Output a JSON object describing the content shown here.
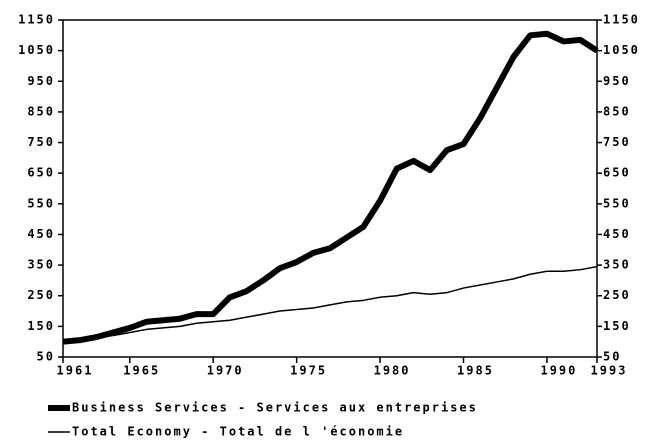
{
  "chart_data": {
    "type": "line",
    "x": [
      1961,
      1962,
      1963,
      1964,
      1965,
      1966,
      1967,
      1968,
      1969,
      1970,
      1971,
      1972,
      1973,
      1974,
      1975,
      1976,
      1977,
      1978,
      1979,
      1980,
      1981,
      1982,
      1983,
      1984,
      1985,
      1986,
      1987,
      1988,
      1989,
      1990,
      1991,
      1992,
      1993
    ],
    "series": [
      {
        "name": "Business Services - Services aux entreprises",
        "color": "#000000",
        "values": [
          100,
          105,
          115,
          130,
          145,
          165,
          170,
          175,
          190,
          190,
          245,
          265,
          300,
          340,
          360,
          390,
          405,
          440,
          475,
          560,
          665,
          690,
          660,
          725,
          745,
          830,
          930,
          1030,
          1100,
          1105,
          1080,
          1085,
          1050
        ]
      },
      {
        "name": "Total Economy - Total de l 'économie",
        "color": "#000000",
        "values": [
          100,
          105,
          112,
          120,
          130,
          140,
          145,
          150,
          160,
          165,
          170,
          180,
          190,
          200,
          205,
          210,
          220,
          230,
          235,
          245,
          250,
          260,
          255,
          260,
          275,
          285,
          295,
          305,
          320,
          330,
          330,
          335,
          345
        ]
      }
    ],
    "xlim": [
      1961,
      1993
    ],
    "xticks": [
      1961,
      1965,
      1970,
      1975,
      1980,
      1985,
      1990,
      1993
    ],
    "ylim": [
      50,
      1150
    ],
    "yticks": [
      50,
      150,
      250,
      350,
      450,
      550,
      650,
      750,
      850,
      950,
      1050,
      1150
    ],
    "y2lim": [
      50,
      1150
    ],
    "y2ticks": [
      50,
      150,
      250,
      350,
      450,
      550,
      650,
      750,
      850,
      950,
      1050,
      1150
    ],
    "grid": false
  }
}
